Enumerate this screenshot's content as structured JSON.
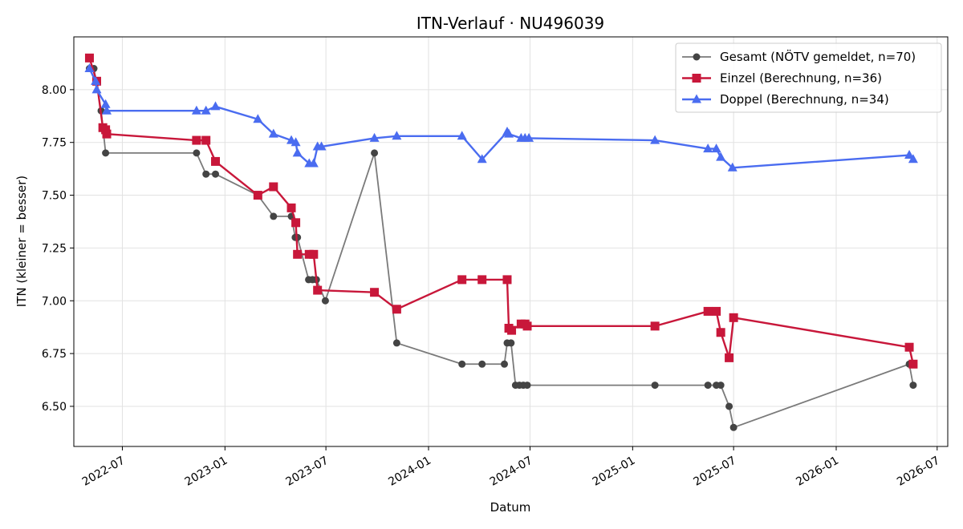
{
  "chart_data": {
    "type": "line",
    "title": "ITN-Verlauf · NU496039",
    "xlabel": "Datum",
    "ylabel": "ITN  (kleiner = besser)",
    "xlim": [
      "2022-04-05",
      "2026-07-20"
    ],
    "ylim": [
      6.31,
      8.25
    ],
    "yticks": [
      6.5,
      6.75,
      7.0,
      7.25,
      7.5,
      7.75,
      8.0
    ],
    "ytick_labels": [
      "6.50",
      "6.75",
      "7.00",
      "7.25",
      "7.50",
      "7.75",
      "8.00"
    ],
    "xticks": [
      "2022-07-01",
      "2023-01-01",
      "2023-07-01",
      "2024-01-01",
      "2024-07-01",
      "2025-01-01",
      "2025-07-01",
      "2026-01-01",
      "2026-07-01"
    ],
    "xtick_labels": [
      "2022-07",
      "2023-01",
      "2023-07",
      "2024-01",
      "2024-07",
      "2025-01",
      "2025-07",
      "2026-01",
      "2026-07"
    ],
    "grid": true,
    "legend_position": "top-right",
    "series": [
      {
        "name": "Gesamt (NÖTV gemeldet, n=70)",
        "color": "#444444",
        "line_color": "#7a7a7a",
        "marker": "circle",
        "points": [
          [
            "2022-05-03",
            8.1
          ],
          [
            "2022-05-11",
            8.1
          ],
          [
            "2022-05-24",
            7.9
          ],
          [
            "2022-06-01",
            7.7
          ],
          [
            "2022-11-11",
            7.7
          ],
          [
            "2022-11-28",
            7.6
          ],
          [
            "2022-12-15",
            7.6
          ],
          [
            "2023-03-01",
            7.5
          ],
          [
            "2023-03-29",
            7.4
          ],
          [
            "2023-04-30",
            7.4
          ],
          [
            "2023-05-07",
            7.3
          ],
          [
            "2023-05-11",
            7.3
          ],
          [
            "2023-05-31",
            7.1
          ],
          [
            "2023-06-07",
            7.1
          ],
          [
            "2023-06-14",
            7.1
          ],
          [
            "2023-06-30",
            7.0
          ],
          [
            "2023-09-26",
            7.7
          ],
          [
            "2023-11-05",
            6.8
          ],
          [
            "2024-03-01",
            6.7
          ],
          [
            "2024-04-06",
            6.7
          ],
          [
            "2024-05-16",
            6.7
          ],
          [
            "2024-05-21",
            6.8
          ],
          [
            "2024-05-28",
            6.8
          ],
          [
            "2024-06-05",
            6.6
          ],
          [
            "2024-06-12",
            6.6
          ],
          [
            "2024-06-19",
            6.6
          ],
          [
            "2024-06-26",
            6.6
          ],
          [
            "2025-02-10",
            6.6
          ],
          [
            "2025-05-16",
            6.6
          ],
          [
            "2025-05-31",
            6.6
          ],
          [
            "2025-06-08",
            6.6
          ],
          [
            "2025-06-23",
            6.5
          ],
          [
            "2025-07-01",
            6.4
          ],
          [
            "2026-05-12",
            6.7
          ],
          [
            "2026-05-19",
            6.6
          ]
        ]
      },
      {
        "name": "Einzel (Berechnung, n=36)",
        "color": "#c8173a",
        "line_color": "#c8173a",
        "marker": "square",
        "points": [
          [
            "2022-05-03",
            8.15
          ],
          [
            "2022-05-16",
            8.04
          ],
          [
            "2022-05-27",
            7.82
          ],
          [
            "2022-06-01",
            7.81
          ],
          [
            "2022-06-03",
            7.79
          ],
          [
            "2022-11-11",
            7.76
          ],
          [
            "2022-11-28",
            7.76
          ],
          [
            "2022-12-15",
            7.66
          ],
          [
            "2023-03-01",
            7.5
          ],
          [
            "2023-03-29",
            7.54
          ],
          [
            "2023-04-30",
            7.44
          ],
          [
            "2023-05-08",
            7.37
          ],
          [
            "2023-05-11",
            7.22
          ],
          [
            "2023-06-01",
            7.22
          ],
          [
            "2023-06-09",
            7.22
          ],
          [
            "2023-06-16",
            7.05
          ],
          [
            "2023-09-26",
            7.04
          ],
          [
            "2023-11-05",
            6.96
          ],
          [
            "2024-03-01",
            7.1
          ],
          [
            "2024-04-06",
            7.1
          ],
          [
            "2024-05-21",
            7.1
          ],
          [
            "2024-05-24",
            6.87
          ],
          [
            "2024-05-29",
            6.86
          ],
          [
            "2024-06-15",
            6.89
          ],
          [
            "2024-06-22",
            6.89
          ],
          [
            "2024-06-26",
            6.88
          ],
          [
            "2025-02-10",
            6.88
          ],
          [
            "2025-05-16",
            6.95
          ],
          [
            "2025-05-31",
            6.95
          ],
          [
            "2025-06-08",
            6.85
          ],
          [
            "2025-06-23",
            6.73
          ],
          [
            "2025-07-01",
            6.92
          ],
          [
            "2026-05-12",
            6.78
          ],
          [
            "2026-05-19",
            6.7
          ]
        ]
      },
      {
        "name": "Doppel (Berechnung, n=34)",
        "color": "#4a6cf0",
        "line_color": "#4a6cf0",
        "marker": "triangle",
        "points": [
          [
            "2022-05-03",
            8.1
          ],
          [
            "2022-05-14",
            8.04
          ],
          [
            "2022-05-16",
            8.0
          ],
          [
            "2022-06-01",
            7.93
          ],
          [
            "2022-06-03",
            7.9
          ],
          [
            "2022-11-11",
            7.9
          ],
          [
            "2022-11-28",
            7.9
          ],
          [
            "2022-12-15",
            7.92
          ],
          [
            "2023-03-01",
            7.86
          ],
          [
            "2023-03-29",
            7.79
          ],
          [
            "2023-04-30",
            7.76
          ],
          [
            "2023-05-08",
            7.75
          ],
          [
            "2023-05-11",
            7.7
          ],
          [
            "2023-06-01",
            7.65
          ],
          [
            "2023-06-09",
            7.65
          ],
          [
            "2023-06-16",
            7.73
          ],
          [
            "2023-06-23",
            7.73
          ],
          [
            "2023-09-26",
            7.77
          ],
          [
            "2023-11-05",
            7.78
          ],
          [
            "2024-03-01",
            7.78
          ],
          [
            "2024-04-06",
            7.67
          ],
          [
            "2024-05-21",
            7.8
          ],
          [
            "2024-05-24",
            7.79
          ],
          [
            "2024-06-15",
            7.77
          ],
          [
            "2024-06-22",
            7.77
          ],
          [
            "2024-06-29",
            7.77
          ],
          [
            "2025-02-10",
            7.76
          ],
          [
            "2025-05-16",
            7.72
          ],
          [
            "2025-05-31",
            7.72
          ],
          [
            "2025-06-08",
            7.68
          ],
          [
            "2025-06-29",
            7.63
          ],
          [
            "2026-05-12",
            7.69
          ],
          [
            "2026-05-19",
            7.67
          ]
        ]
      }
    ]
  }
}
